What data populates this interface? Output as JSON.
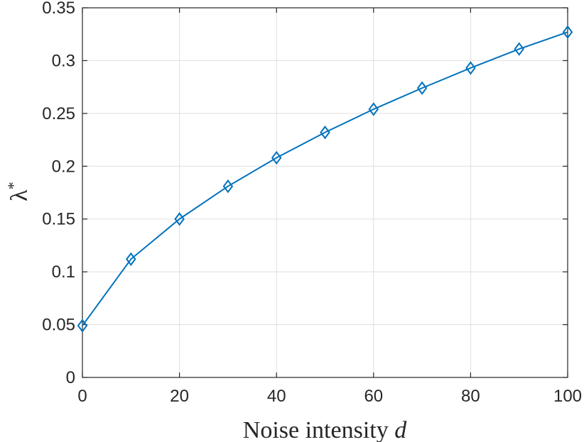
{
  "chart_data": {
    "type": "line",
    "x": [
      0,
      10,
      20,
      30,
      40,
      50,
      60,
      70,
      80,
      90,
      100
    ],
    "series": [
      {
        "values": [
          0.049,
          0.112,
          0.15,
          0.181,
          0.208,
          0.232,
          0.254,
          0.274,
          0.293,
          0.311,
          0.327
        ],
        "marker": "diamond",
        "color": "#0072BD"
      }
    ],
    "xlim": [
      0,
      100
    ],
    "ylim": [
      0,
      0.35
    ],
    "xticks": [
      "0",
      "20",
      "40",
      "60",
      "80",
      "100"
    ],
    "xtick_values": [
      0,
      20,
      40,
      60,
      80,
      100
    ],
    "yticks": [
      "0",
      "0.05",
      "0.1",
      "0.15",
      "0.2",
      "0.25",
      "0.3",
      "0.35"
    ],
    "ytick_values": [
      0,
      0.05,
      0.1,
      0.15,
      0.2,
      0.25,
      0.3,
      0.35
    ],
    "xlabel_text": "Noise intensity ",
    "xlabel_var": "d",
    "ylabel": "λ",
    "ylabel_sup": "*",
    "grid": true,
    "grid_color": "#dfdfdf",
    "axis_color": "#262626"
  }
}
